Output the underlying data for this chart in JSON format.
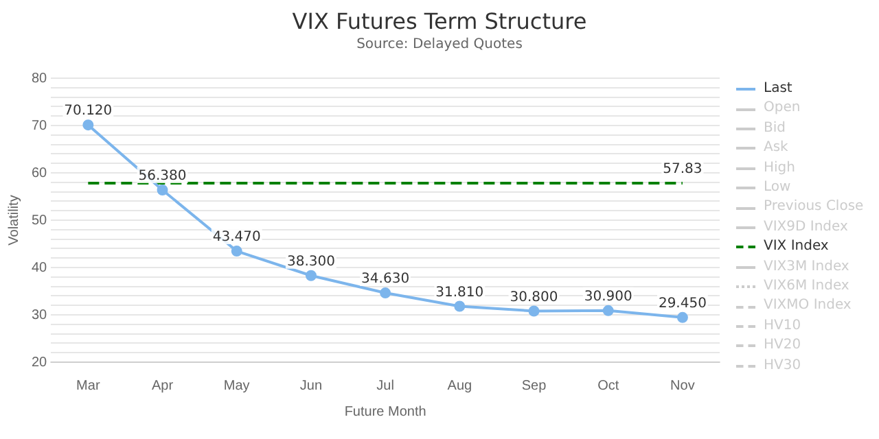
{
  "chart_data": {
    "type": "line",
    "title": "VIX Futures Term Structure",
    "subtitle": "Source: Delayed Quotes",
    "xlabel": "Future Month",
    "ylabel": "Volatility",
    "categories": [
      "Mar",
      "Apr",
      "May",
      "Jun",
      "Jul",
      "Aug",
      "Sep",
      "Oct",
      "Nov"
    ],
    "ylim": [
      20,
      80
    ],
    "yticks": [
      20,
      {
        "value": 22,
        "label": null
      },
      {
        "value": 24,
        "label": null
      },
      {
        "value": 26,
        "label": null
      },
      {
        "value": 28,
        "label": null
      },
      30,
      {
        "value": 32,
        "label": null
      },
      {
        "value": 34,
        "label": null
      },
      {
        "value": 36,
        "label": null
      },
      {
        "value": 38,
        "label": null
      },
      40,
      {
        "value": 42,
        "label": null
      },
      {
        "value": 44,
        "label": null
      },
      {
        "value": 46,
        "label": null
      },
      {
        "value": 48,
        "label": null
      },
      50,
      {
        "value": 52,
        "label": null
      },
      {
        "value": 54,
        "label": null
      },
      {
        "value": 56,
        "label": null
      },
      {
        "value": 58,
        "label": null
      },
      60,
      {
        "value": 62,
        "label": null
      },
      {
        "value": 64,
        "label": null
      },
      {
        "value": 66,
        "label": null
      },
      {
        "value": 68,
        "label": null
      },
      70,
      {
        "value": 72,
        "label": null
      },
      {
        "value": 74,
        "label": null
      },
      {
        "value": 76,
        "label": null
      },
      {
        "value": 78,
        "label": null
      },
      80
    ],
    "grid": "y",
    "legend": "right",
    "series": [
      {
        "name": "Last",
        "color": "#7cb5ec",
        "marker": "circle",
        "line_style": "solid",
        "values": [
          70.12,
          56.38,
          43.47,
          38.3,
          34.63,
          31.81,
          30.8,
          30.9,
          29.45
        ],
        "value_labels": [
          "70.120",
          "56.380",
          "43.470",
          "38.300",
          "34.630",
          "31.810",
          "30.800",
          "30.900",
          "29.450"
        ]
      },
      {
        "name": "Open",
        "color": "#cccccc",
        "marker": "diamond",
        "line_style": "solid",
        "values": [
          null,
          null,
          null,
          null,
          null,
          null,
          null,
          null,
          null
        ]
      },
      {
        "name": "Bid",
        "color": "#cccccc",
        "marker": "square",
        "line_style": "solid",
        "values": [
          null,
          null,
          null,
          null,
          null,
          null,
          null,
          null,
          null
        ]
      },
      {
        "name": "Ask",
        "color": "#cccccc",
        "marker": "triangle",
        "line_style": "solid",
        "values": [
          null,
          null,
          null,
          null,
          null,
          null,
          null,
          null,
          null
        ]
      },
      {
        "name": "High",
        "color": "#cccccc",
        "marker": "triangle",
        "line_style": "solid",
        "values": [
          null,
          null,
          null,
          null,
          null,
          null,
          null,
          null,
          null
        ]
      },
      {
        "name": "Low",
        "color": "#cccccc",
        "marker": "circle",
        "line_style": "solid",
        "values": [
          null,
          null,
          null,
          null,
          null,
          null,
          null,
          null,
          null
        ]
      },
      {
        "name": "Previous Close",
        "color": "#cccccc",
        "marker": "diamond",
        "line_style": "solid",
        "values": [
          null,
          null,
          null,
          null,
          null,
          null,
          null,
          null,
          null
        ]
      },
      {
        "name": "VIX9D Index",
        "color": "#cccccc",
        "marker": "none",
        "line_style": "solid",
        "values": [
          null,
          null,
          null,
          null,
          null,
          null,
          null,
          null,
          null
        ]
      },
      {
        "name": "VIX Index",
        "color": "#008000",
        "marker": "none",
        "line_style": "dashed",
        "values": [
          57.83,
          57.83,
          57.83,
          57.83,
          57.83,
          57.83,
          57.83,
          57.83,
          57.83
        ],
        "value_labels": [
          null,
          null,
          null,
          null,
          null,
          null,
          null,
          null,
          "57.83"
        ]
      },
      {
        "name": "VIX3M Index",
        "color": "#cccccc",
        "marker": "none",
        "line_style": "solid",
        "values": [
          null,
          null,
          null,
          null,
          null,
          null,
          null,
          null,
          null
        ]
      },
      {
        "name": "VIX6M Index",
        "color": "#cccccc",
        "marker": "none",
        "line_style": "dotted",
        "values": [
          null,
          null,
          null,
          null,
          null,
          null,
          null,
          null,
          null
        ]
      },
      {
        "name": "VIXMO Index",
        "color": "#cccccc",
        "marker": "none",
        "line_style": "dashed",
        "values": [
          null,
          null,
          null,
          null,
          null,
          null,
          null,
          null,
          null
        ]
      },
      {
        "name": "HV10",
        "color": "#cccccc",
        "marker": "none",
        "line_style": "dashed",
        "values": [
          null,
          null,
          null,
          null,
          null,
          null,
          null,
          null,
          null
        ]
      },
      {
        "name": "HV20",
        "color": "#cccccc",
        "marker": "none",
        "line_style": "dashed",
        "values": [
          null,
          null,
          null,
          null,
          null,
          null,
          null,
          null,
          null
        ]
      },
      {
        "name": "HV30",
        "color": "#cccccc",
        "marker": "none",
        "line_style": "dashed",
        "values": [
          null,
          null,
          null,
          null,
          null,
          null,
          null,
          null,
          null
        ]
      }
    ]
  }
}
